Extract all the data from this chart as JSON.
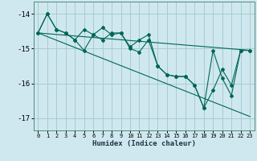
{
  "xlabel": "Humidex (Indice chaleur)",
  "background_color": "#cfe8f0",
  "grid_color": "#a8cccc",
  "line_color": "#006655",
  "xlim": [
    -0.5,
    23.5
  ],
  "ylim": [
    -17.35,
    -13.65
  ],
  "yticks": [
    -17,
    -16,
    -15,
    -14
  ],
  "xticks": [
    0,
    1,
    2,
    3,
    4,
    5,
    6,
    7,
    8,
    9,
    10,
    11,
    12,
    13,
    14,
    15,
    16,
    17,
    18,
    19,
    20,
    21,
    22,
    23
  ],
  "line_upper": [
    [
      0,
      -14.55
    ],
    [
      23,
      -15.05
    ]
  ],
  "line_lower": [
    [
      0,
      -14.55
    ],
    [
      23,
      -16.95
    ]
  ],
  "series1": [
    [
      0,
      -14.55
    ],
    [
      1,
      -14.0
    ],
    [
      2,
      -14.45
    ],
    [
      3,
      -14.55
    ],
    [
      4,
      -14.75
    ],
    [
      5,
      -14.45
    ],
    [
      6,
      -14.6
    ],
    [
      7,
      -14.4
    ],
    [
      8,
      -14.6
    ],
    [
      9,
      -14.55
    ],
    [
      10,
      -14.95
    ],
    [
      11,
      -14.75
    ],
    [
      12,
      -14.6
    ],
    [
      13,
      -15.5
    ],
    [
      14,
      -15.75
    ],
    [
      15,
      -15.8
    ],
    [
      16,
      -15.8
    ],
    [
      17,
      -16.05
    ],
    [
      18,
      -16.7
    ],
    [
      19,
      -15.05
    ],
    [
      20,
      -15.85
    ],
    [
      21,
      -16.35
    ],
    [
      22,
      -15.05
    ],
    [
      23,
      -15.05
    ]
  ],
  "series2": [
    [
      0,
      -14.55
    ],
    [
      1,
      -14.0
    ],
    [
      2,
      -14.45
    ],
    [
      3,
      -14.55
    ],
    [
      4,
      -14.75
    ],
    [
      5,
      -15.05
    ],
    [
      6,
      -14.6
    ],
    [
      7,
      -14.75
    ],
    [
      8,
      -14.55
    ],
    [
      9,
      -14.55
    ],
    [
      10,
      -15.0
    ],
    [
      11,
      -15.1
    ],
    [
      12,
      -14.75
    ],
    [
      13,
      -15.5
    ],
    [
      14,
      -15.75
    ],
    [
      15,
      -15.8
    ],
    [
      16,
      -15.8
    ],
    [
      17,
      -16.05
    ],
    [
      18,
      -16.7
    ],
    [
      19,
      -16.2
    ],
    [
      20,
      -15.6
    ],
    [
      21,
      -16.05
    ],
    [
      22,
      -15.05
    ],
    [
      23,
      -15.05
    ]
  ]
}
